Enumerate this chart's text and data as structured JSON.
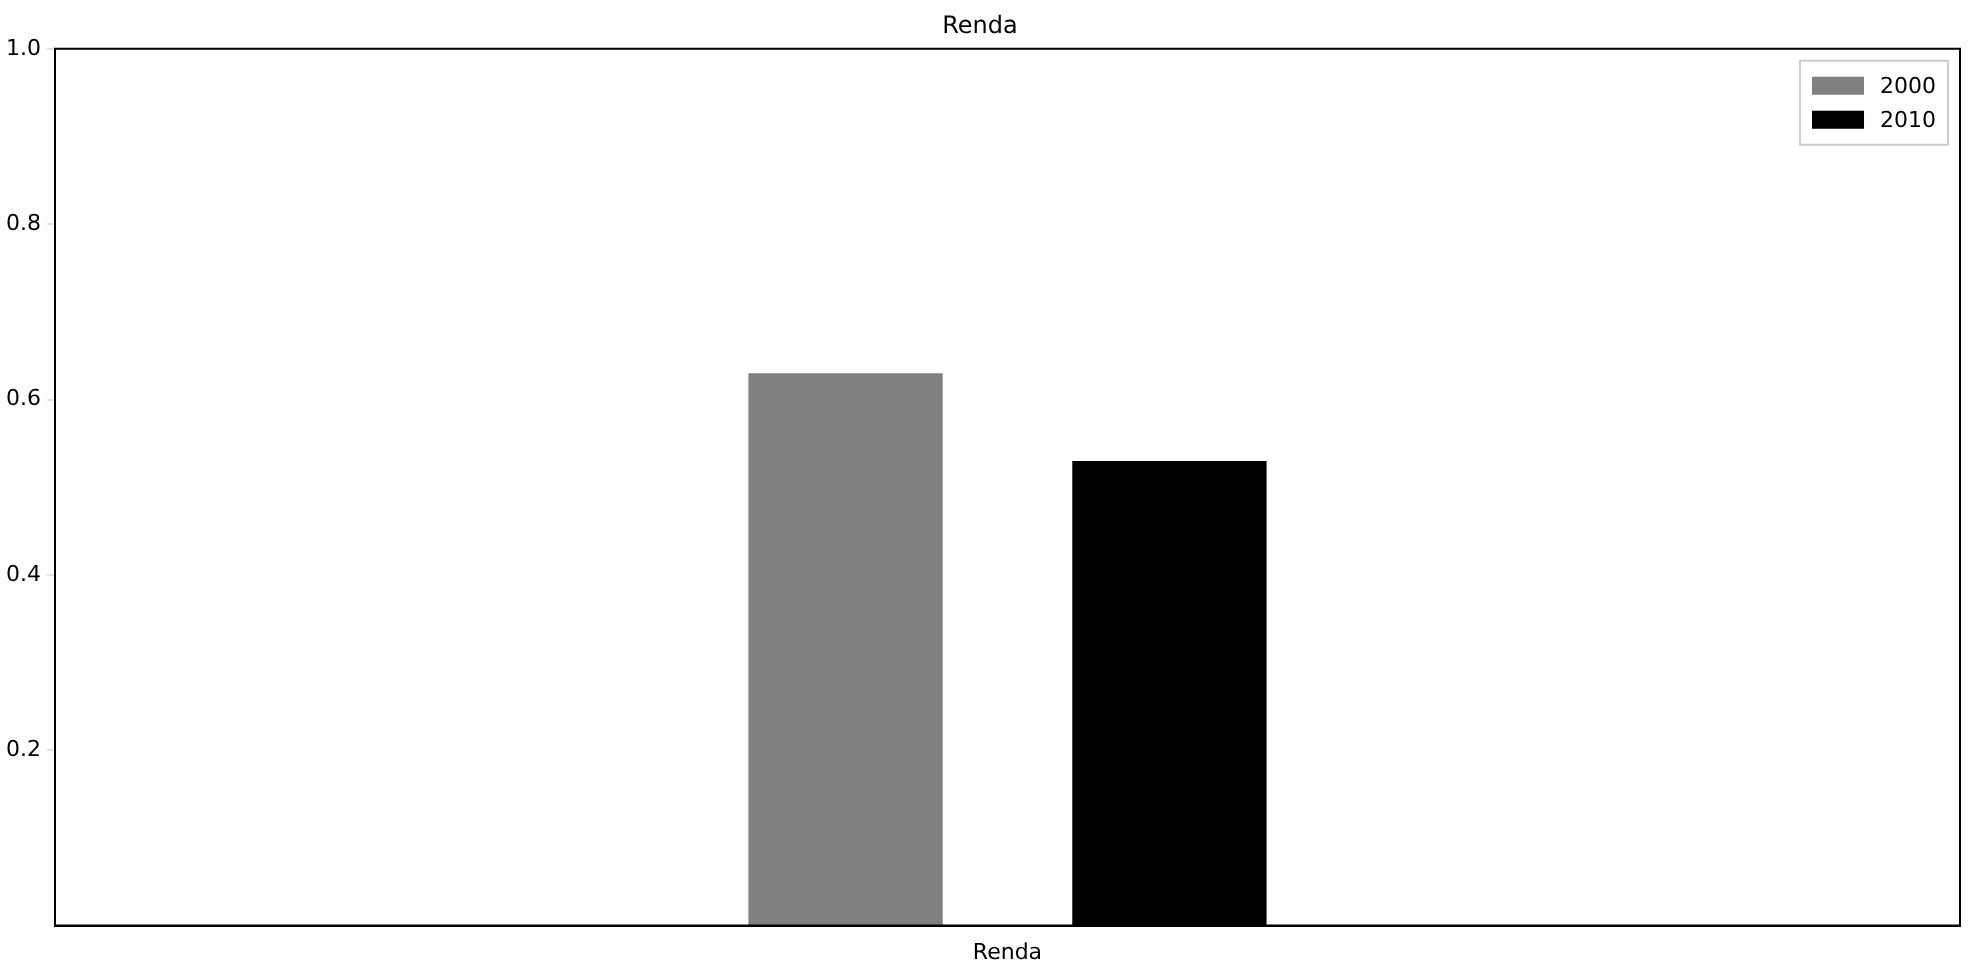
{
  "chart_data": {
    "type": "bar",
    "title": "Renda",
    "categories": [
      "Renda"
    ],
    "series": [
      {
        "name": "2000",
        "color": "#808080",
        "values": [
          0.63
        ]
      },
      {
        "name": "2010",
        "color": "#000000",
        "values": [
          0.53
        ]
      }
    ],
    "ylim": [
      0,
      1.0
    ],
    "yticks": [
      0.2,
      0.4,
      0.6,
      0.8,
      {
        "value": 1.0,
        "label": "1.0"
      }
    ],
    "grid": false,
    "legend": "top right"
  }
}
